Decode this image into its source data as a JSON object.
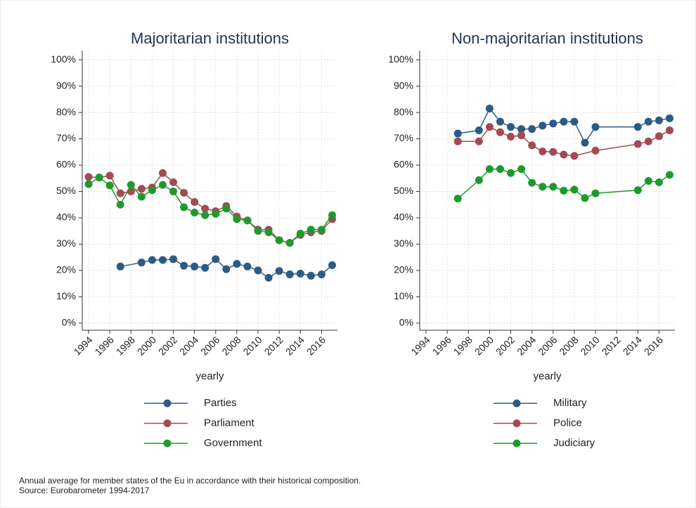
{
  "chart_data": [
    {
      "type": "line",
      "title": "Majoritarian institutions",
      "xlabel": "yearly",
      "xlim": [
        1993.4,
        2017.5
      ],
      "ylim": [
        -2.7,
        103.5
      ],
      "grid": true,
      "xticks": [
        1994,
        1996,
        1998,
        2000,
        2002,
        2004,
        2006,
        2008,
        2010,
        2012,
        2014,
        2016
      ],
      "yticks": [
        {
          "value": 0,
          "label": "0%"
        },
        {
          "value": 10,
          "label": "10%"
        },
        {
          "value": 20,
          "label": "20%"
        },
        {
          "value": 30,
          "label": "30%"
        },
        {
          "value": 40,
          "label": "40%"
        },
        {
          "value": 50,
          "label": "50%"
        },
        {
          "value": 60,
          "label": "60%"
        },
        {
          "value": 70,
          "label": "70%"
        },
        {
          "value": 80,
          "label": "80%"
        },
        {
          "value": 90,
          "label": "90%"
        },
        {
          "value": 100,
          "label": "100%"
        }
      ],
      "series": [
        {
          "name": "Parties",
          "color": "#2b5b84",
          "x": [
            1997,
            1999,
            2000,
            2001,
            2002,
            2003,
            2004,
            2005,
            2006,
            2007,
            2008,
            2009,
            2010,
            2011,
            2012,
            2013,
            2014,
            2015,
            2016,
            2017
          ],
          "values": [
            21.5,
            23,
            24,
            24,
            24.3,
            21.8,
            21.5,
            21,
            24.3,
            20.5,
            22.5,
            21.5,
            20,
            17.2,
            19.8,
            18.5,
            18.8,
            18,
            18.5,
            22
          ]
        },
        {
          "name": "Parliament",
          "color": "#a34a57",
          "x": [
            1994,
            1995,
            1996,
            1997,
            1998,
            1999,
            2000,
            2001,
            2002,
            2003,
            2004,
            2005,
            2006,
            2007,
            2008,
            2009,
            2010,
            2011,
            2012,
            2013,
            2014,
            2015,
            2016,
            2017
          ],
          "values": [
            55.5,
            55.3,
            56,
            49.3,
            50,
            51,
            51.5,
            57,
            53.5,
            49.5,
            46,
            43.5,
            42.5,
            44.5,
            40.5,
            39,
            35.5,
            35.5,
            31.5,
            30.5,
            33.5,
            34.5,
            35,
            39.5
          ]
        },
        {
          "name": "Government",
          "color": "#1e9a2c",
          "x": [
            1994,
            1995,
            1996,
            1997,
            1998,
            1999,
            2000,
            2001,
            2002,
            2003,
            2004,
            2005,
            2006,
            2007,
            2008,
            2009,
            2010,
            2011,
            2012,
            2013,
            2014,
            2015,
            2016,
            2017
          ],
          "values": [
            52.8,
            55.3,
            52.3,
            45,
            52.5,
            48,
            50.5,
            52.5,
            50,
            44,
            42,
            41,
            41.5,
            43.5,
            39.5,
            39,
            35,
            34.5,
            31.5,
            30.5,
            34,
            35.5,
            35.5,
            41
          ]
        }
      ]
    },
    {
      "type": "line",
      "title": "Non-majoritarian institutions",
      "xlabel": "yearly",
      "xlim": [
        1993.4,
        2017.5
      ],
      "ylim": [
        -2.7,
        103.5
      ],
      "grid": true,
      "xticks": [
        1994,
        1996,
        1998,
        2000,
        2002,
        2004,
        2006,
        2008,
        2010,
        2012,
        2014,
        2016
      ],
      "yticks": [
        {
          "value": 0,
          "label": "0%"
        },
        {
          "value": 10,
          "label": "10%"
        },
        {
          "value": 20,
          "label": "20%"
        },
        {
          "value": 30,
          "label": "30%"
        },
        {
          "value": 40,
          "label": "40%"
        },
        {
          "value": 50,
          "label": "50%"
        },
        {
          "value": 60,
          "label": "60%"
        },
        {
          "value": 70,
          "label": "70%"
        },
        {
          "value": 80,
          "label": "80%"
        },
        {
          "value": 90,
          "label": "90%"
        },
        {
          "value": 100,
          "label": "100%"
        }
      ],
      "series": [
        {
          "name": "Military",
          "color": "#2b5b84",
          "x": [
            1997,
            1999,
            2000,
            2001,
            2002,
            2003,
            2004,
            2005,
            2006,
            2007,
            2008,
            2009,
            2010,
            2014,
            2015,
            2016,
            2017
          ],
          "values": [
            72,
            73.2,
            81.5,
            76.5,
            74.5,
            73.7,
            73.7,
            75,
            75.8,
            76.5,
            76.5,
            68.5,
            74.5,
            74.5,
            76.5,
            77,
            77.8
          ]
        },
        {
          "name": "Police",
          "color": "#a34a57",
          "x": [
            1997,
            1999,
            2000,
            2001,
            2002,
            2003,
            2004,
            2005,
            2006,
            2007,
            2008,
            2010,
            2014,
            2015,
            2016,
            2017
          ],
          "values": [
            69,
            69,
            74.5,
            72.5,
            70.8,
            71.3,
            67.5,
            65.2,
            65,
            64,
            63.5,
            65.5,
            68,
            69,
            71,
            73.2
          ]
        },
        {
          "name": "Judiciary",
          "color": "#1e9a2c",
          "x": [
            1997,
            1999,
            2000,
            2001,
            2002,
            2003,
            2004,
            2005,
            2006,
            2007,
            2008,
            2009,
            2010,
            2014,
            2015,
            2016,
            2017
          ],
          "values": [
            47.3,
            54.3,
            58.5,
            58.5,
            57,
            58.5,
            53.3,
            51.8,
            51.8,
            50.3,
            50.7,
            47.5,
            49.3,
            50.5,
            54,
            53.5,
            56.3
          ]
        }
      ]
    }
  ],
  "notes": [
    "Annual average for member states of the Eu in accordance with their historical composition.",
    "Source: Eurobarometer 1994-2017"
  ]
}
